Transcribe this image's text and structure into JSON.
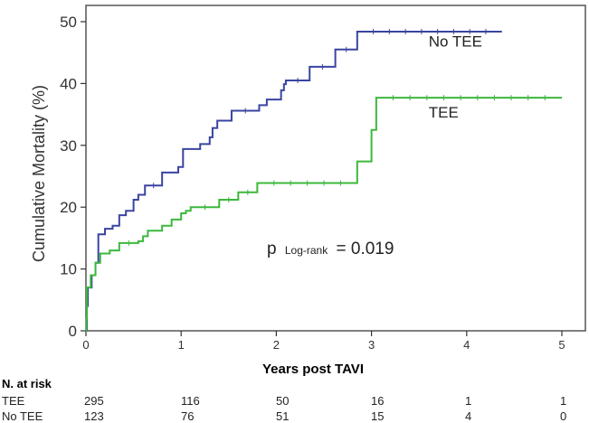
{
  "chart_data": {
    "type": "line",
    "subtype": "kaplan-meier step",
    "xlabel": "Years post TAVI",
    "ylabel": "Cumulative Mortality (%)",
    "xlim": [
      0,
      5.3
    ],
    "ylim": [
      0,
      52
    ],
    "xticks": [
      0,
      1,
      2,
      3,
      4,
      5
    ],
    "yticks": [
      0,
      10,
      20,
      30,
      40,
      50
    ],
    "grid": false,
    "annotation": {
      "p_prefix": "p",
      "p_sub": "Log-rank",
      "p_value": "= 0.019"
    },
    "series": [
      {
        "name": "No TEE",
        "color": "#3a44a0",
        "x": [
          0,
          0.01,
          0.02,
          0.06,
          0.1,
          0.13,
          0.2,
          0.28,
          0.35,
          0.42,
          0.5,
          0.55,
          0.62,
          0.8,
          0.97,
          1.02,
          1.2,
          1.3,
          1.33,
          1.38,
          1.53,
          1.82,
          1.9,
          2.05,
          2.08,
          2.1,
          2.35,
          2.62,
          2.85,
          4.37
        ],
        "y": [
          0,
          4,
          7,
          9,
          11,
          15.6,
          16.5,
          17,
          18.7,
          19.4,
          21.2,
          22,
          23.5,
          25.6,
          26.5,
          29.4,
          30.2,
          31.3,
          32.8,
          34,
          35.6,
          36.5,
          37.4,
          38.9,
          39.9,
          40.5,
          42.7,
          45.5,
          48.4,
          48.4
        ]
      },
      {
        "name": "TEE",
        "color": "#3cb83c",
        "x": [
          0,
          0.005,
          0.01,
          0.05,
          0.1,
          0.15,
          0.25,
          0.35,
          0.55,
          0.6,
          0.65,
          0.8,
          0.9,
          1.0,
          1.05,
          1.1,
          1.4,
          1.6,
          1.8,
          2.85,
          3.0,
          3.05,
          5.0
        ],
        "y": [
          0,
          2,
          7,
          9,
          11,
          12.5,
          13,
          14.2,
          14.5,
          15.3,
          16.2,
          17,
          18,
          19,
          19.4,
          20,
          21.2,
          22.4,
          23.9,
          27.4,
          32.5,
          37.7,
          37.7
        ]
      }
    ],
    "series_labels": [
      {
        "name": "No TEE",
        "x": 3.6,
        "y": 46
      },
      {
        "name": "TEE",
        "x": 3.6,
        "y": 34.5
      }
    ],
    "at_risk": {
      "title": "N. at risk",
      "times": [
        0,
        1,
        2,
        3,
        4,
        5
      ],
      "rows": [
        {
          "label": "TEE",
          "values": [
            295,
            116,
            50,
            16,
            1,
            1
          ]
        },
        {
          "label": "No TEE",
          "values": [
            123,
            76,
            51,
            15,
            4,
            0
          ]
        }
      ]
    }
  }
}
